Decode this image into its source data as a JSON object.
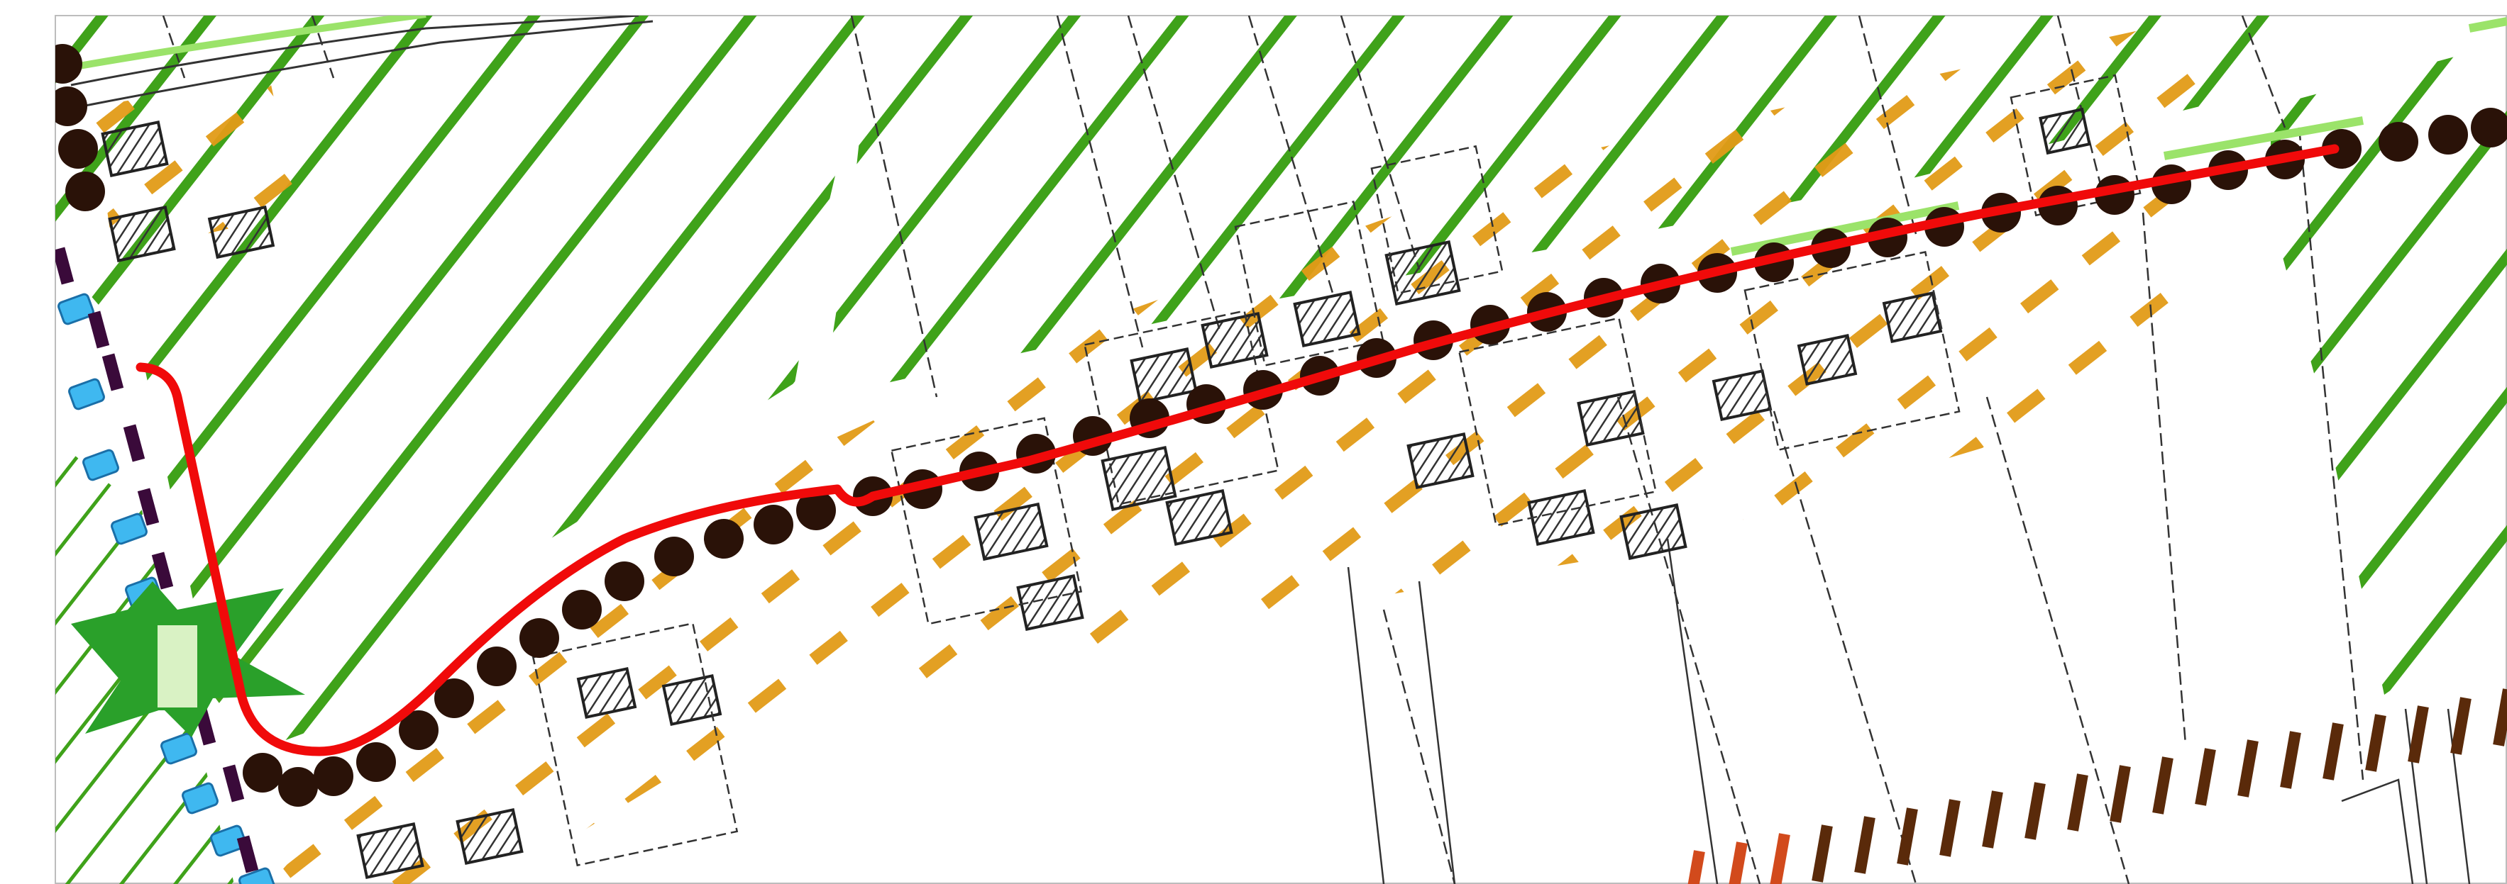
{
  "map": {
    "legend_colors": {
      "green_hatch": "#3fa21a",
      "light_green_strip": "#9be36a",
      "orange_dash_hatch": "#e29b17",
      "boundary_dots": "#2a1208",
      "route_line": "#f00a0a",
      "building_outline": "#222222",
      "parcel_dash": "#333333",
      "blue_marker": "#3fb8f0",
      "purple_mark": "#3a0a3a",
      "green_star": "#2aa02a",
      "brown_tick": "#5a2a0a",
      "orange_tick": "#d24a1c"
    },
    "icons": [
      "route-line",
      "boundary-dots",
      "green-hatch-area",
      "orange-hatch-area",
      "building-footprint",
      "parcel-boundary",
      "green-star-marker",
      "blue-markers",
      "brown-ticks"
    ]
  }
}
